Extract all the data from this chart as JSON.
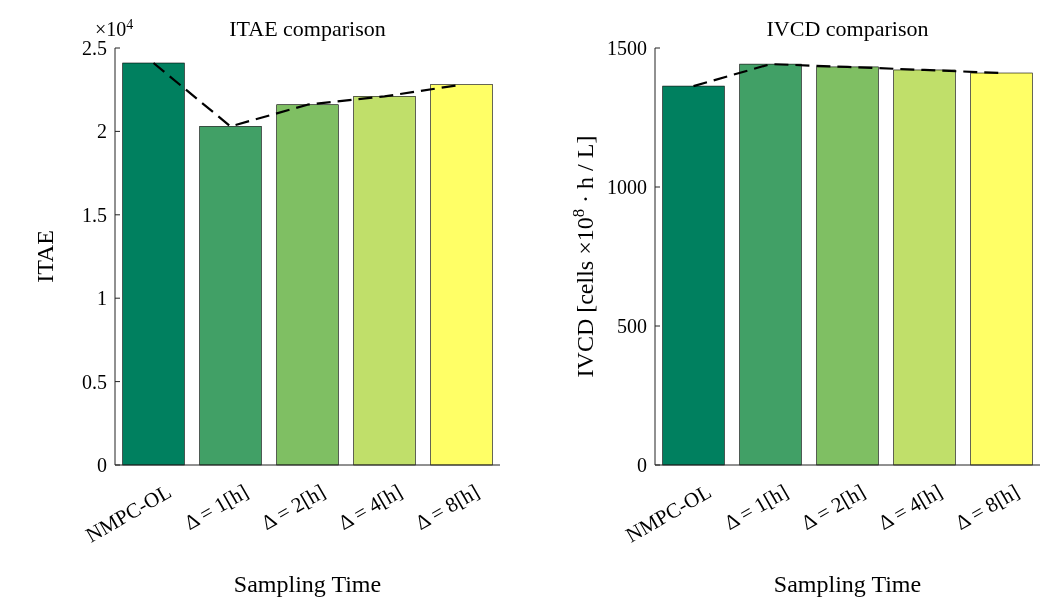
{
  "chart_data": [
    {
      "type": "bar",
      "title": "ITAE comparison",
      "xlabel": "Sampling Time",
      "ylabel": "ITAE",
      "annotations": [
        "×10$^{4}$"
      ],
      "categories": [
        "NMPC-OL",
        "Δ = 1[h]",
        "Δ = 2[h]",
        "Δ = 4[h]",
        "Δ = 8[h]"
      ],
      "ylim": [
        0,
        2.5
      ],
      "yticks": [
        0,
        0.5,
        1,
        1.5,
        2,
        2.5
      ],
      "series": [
        {
          "colors": [
            "#00805f",
            "#41a066",
            "#7fbf63",
            "#c0df6a",
            "#ffff66"
          ],
          "values": [
            2.41,
            2.03,
            2.16,
            2.21,
            2.28
          ]
        },
        {
          "type": "line",
          "color": "#000000",
          "line_style": "dashed",
          "values": [
            2.41,
            2.03,
            2.16,
            2.21,
            2.28
          ]
        }
      ]
    },
    {
      "type": "bar",
      "title": "IVCD comparison",
      "xlabel": "Sampling Time",
      "ylabel": "IVCD [cells ×10$^{8}$ · h / L]",
      "categories": [
        "NMPC-OL",
        "Δ = 1[h]",
        "Δ = 2[h]",
        "Δ = 4[h]",
        "Δ = 8[h]"
      ],
      "ylim": [
        0,
        1500
      ],
      "yticks": [
        0,
        500,
        1000,
        1500
      ],
      "series": [
        {
          "colors": [
            "#00805f",
            "#41a066",
            "#7fbf63",
            "#c0df6a",
            "#ffff66"
          ],
          "values": [
            1363,
            1442,
            1432,
            1421,
            1410
          ]
        },
        {
          "type": "line",
          "color": "#000000",
          "line_style": "dashed",
          "values": [
            1363,
            1442,
            1432,
            1421,
            1410
          ]
        }
      ]
    }
  ]
}
